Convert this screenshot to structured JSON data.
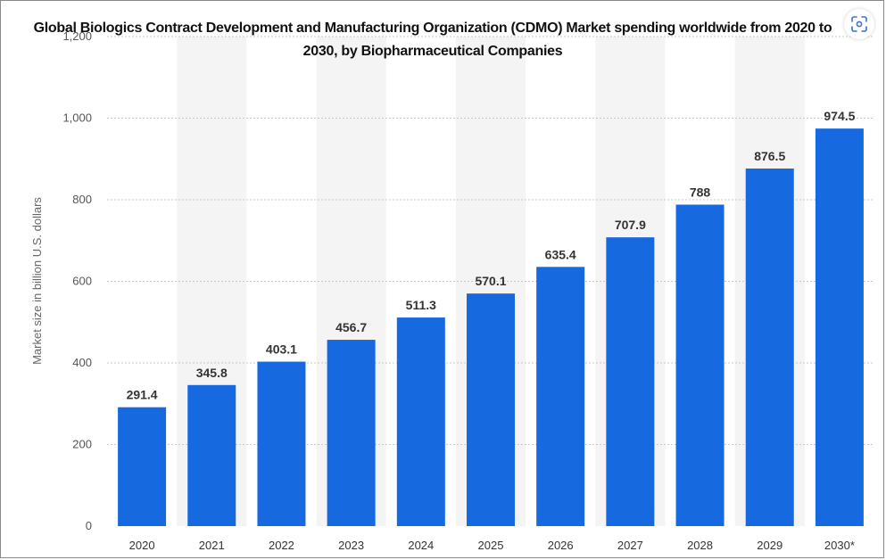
{
  "chart_data": {
    "type": "bar",
    "title": "Global Biologics Contract Development and Manufacturing Organization (CDMO) Market spending worldwide from 2020 to 2030, by Biopharmaceutical Companies",
    "xlabel": "",
    "ylabel": "Market size in billion U.S. dollars",
    "categories": [
      "2020",
      "2021",
      "2022",
      "2023",
      "2024",
      "2025",
      "2026",
      "2027",
      "2028",
      "2029",
      "2030*"
    ],
    "values": [
      291.4,
      345.8,
      403.1,
      456.7,
      511.3,
      570.1,
      635.4,
      707.9,
      788,
      876.5,
      974.5
    ],
    "value_labels": [
      "291.4",
      "345.8",
      "403.1",
      "456.7",
      "511.3",
      "570.1",
      "635.4",
      "707.9",
      "788",
      "876.5",
      "974.5"
    ],
    "ylim": [
      0,
      1200
    ],
    "y_ticks": [
      0,
      200,
      400,
      600,
      800,
      1000,
      1200
    ],
    "y_tick_labels": [
      "0",
      "200",
      "400",
      "600",
      "800",
      "1,000",
      "1,200"
    ],
    "grid": true,
    "bar_color": "#1769e0",
    "column_band_color": "#f4f4f4"
  },
  "ui": {
    "lens_icon": "visual-search-icon"
  }
}
